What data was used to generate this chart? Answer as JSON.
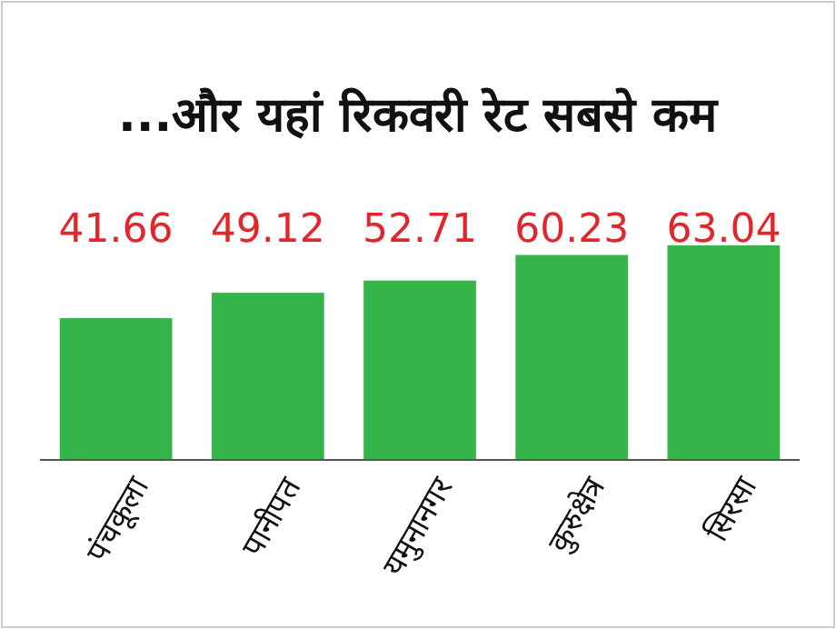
{
  "chart_data": {
    "type": "bar",
    "title": "...और यहां रिकवरी रेट सबसे कम",
    "categories": [
      "पंचकूला",
      "पानीपत",
      "यमुनानगर",
      "कुरुक्षेत्र",
      "सिरसा"
    ],
    "values": [
      41.66,
      49.12,
      52.71,
      60.23,
      63.04
    ],
    "color": "#35b44a",
    "data_labels": true
  }
}
